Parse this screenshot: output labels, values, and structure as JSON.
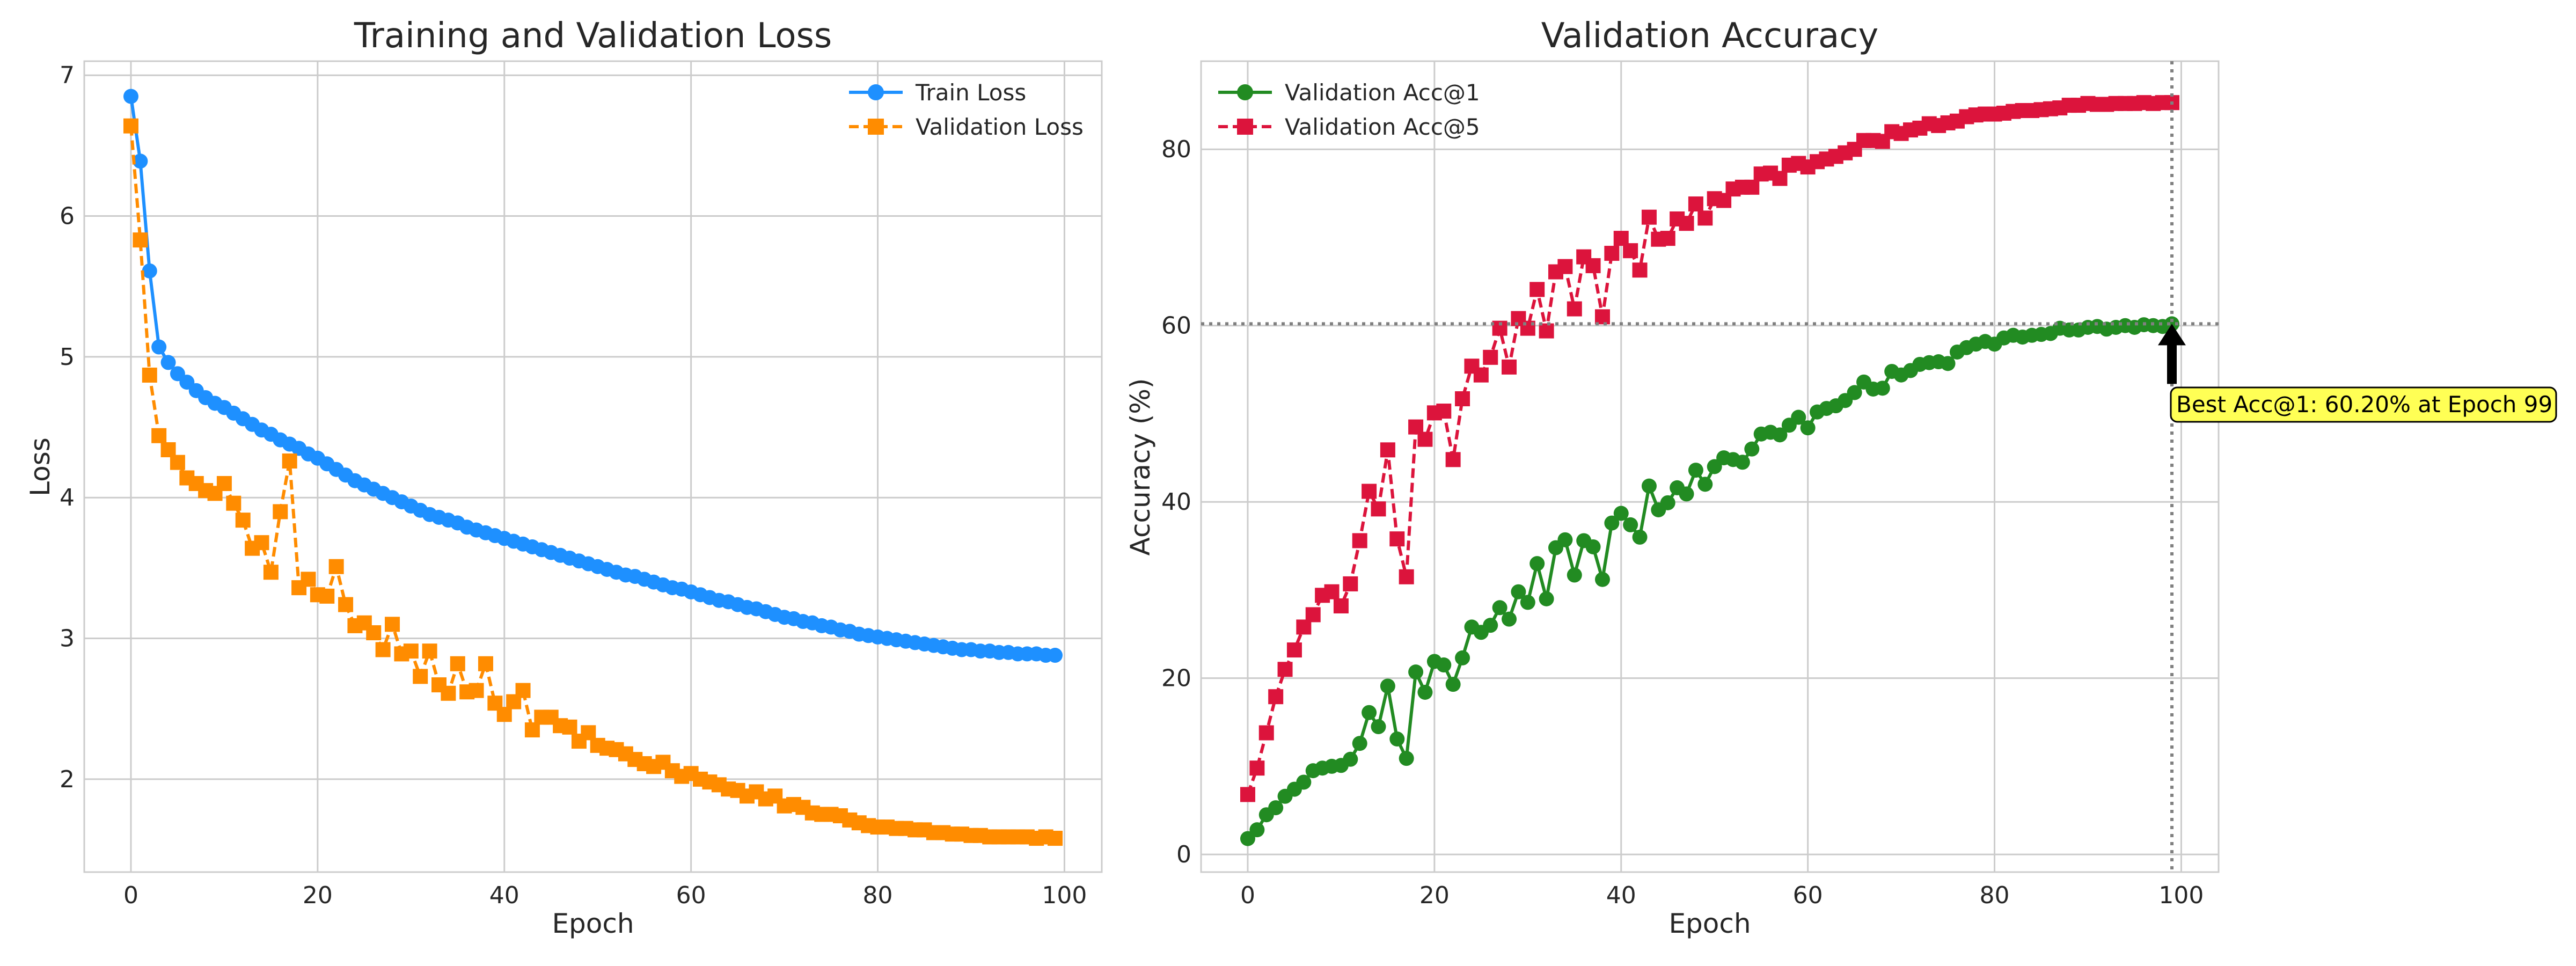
{
  "chart_data": [
    {
      "type": "line",
      "title": "Training and Validation Loss",
      "xlabel": "Epoch",
      "ylabel": "Loss",
      "xlim": [
        -5,
        104
      ],
      "ylim": [
        1.34,
        7.1
      ],
      "xticks": [
        0,
        20,
        40,
        60,
        80,
        100
      ],
      "yticks": [
        2,
        3,
        4,
        5,
        6,
        7
      ],
      "grid": true,
      "legend_position": "top-right",
      "series": [
        {
          "name": "Train Loss",
          "color": "#1E90FF",
          "linestyle": "solid",
          "marker": "circle",
          "values": [
            6.85,
            6.39,
            5.61,
            5.07,
            4.96,
            4.88,
            4.82,
            4.76,
            4.71,
            4.67,
            4.64,
            4.6,
            4.56,
            4.52,
            4.48,
            4.45,
            4.41,
            4.38,
            4.35,
            4.31,
            4.28,
            4.24,
            4.2,
            4.16,
            4.12,
            4.09,
            4.06,
            4.03,
            4.0,
            3.97,
            3.94,
            3.91,
            3.88,
            3.86,
            3.84,
            3.82,
            3.79,
            3.77,
            3.75,
            3.73,
            3.71,
            3.69,
            3.67,
            3.65,
            3.63,
            3.61,
            3.59,
            3.57,
            3.55,
            3.53,
            3.51,
            3.49,
            3.47,
            3.45,
            3.44,
            3.42,
            3.4,
            3.38,
            3.36,
            3.35,
            3.33,
            3.31,
            3.29,
            3.27,
            3.26,
            3.24,
            3.22,
            3.21,
            3.19,
            3.17,
            3.15,
            3.14,
            3.12,
            3.11,
            3.09,
            3.08,
            3.06,
            3.05,
            3.03,
            3.02,
            3.01,
            3.0,
            2.99,
            2.98,
            2.97,
            2.96,
            2.95,
            2.94,
            2.93,
            2.92,
            2.92,
            2.91,
            2.91,
            2.9,
            2.9,
            2.89,
            2.89,
            2.89,
            2.88,
            2.88
          ]
        },
        {
          "name": "Validation Loss",
          "color": "#FF8C00",
          "linestyle": "dashed",
          "marker": "square",
          "values": [
            6.64,
            5.83,
            4.87,
            4.44,
            4.34,
            4.25,
            4.14,
            4.1,
            4.05,
            4.03,
            4.1,
            3.96,
            3.84,
            3.64,
            3.68,
            3.47,
            3.9,
            4.26,
            3.36,
            3.42,
            3.31,
            3.3,
            3.51,
            3.24,
            3.09,
            3.11,
            3.04,
            2.92,
            3.1,
            2.89,
            2.91,
            2.73,
            2.91,
            2.67,
            2.61,
            2.82,
            2.62,
            2.63,
            2.82,
            2.54,
            2.46,
            2.55,
            2.63,
            2.35,
            2.44,
            2.44,
            2.38,
            2.37,
            2.27,
            2.33,
            2.24,
            2.22,
            2.21,
            2.18,
            2.14,
            2.11,
            2.09,
            2.12,
            2.06,
            2.02,
            2.04,
            2.0,
            1.98,
            1.96,
            1.93,
            1.92,
            1.88,
            1.91,
            1.86,
            1.88,
            1.81,
            1.82,
            1.8,
            1.76,
            1.75,
            1.75,
            1.74,
            1.71,
            1.69,
            1.67,
            1.66,
            1.66,
            1.65,
            1.65,
            1.64,
            1.64,
            1.62,
            1.62,
            1.61,
            1.61,
            1.6,
            1.6,
            1.59,
            1.59,
            1.59,
            1.59,
            1.59,
            1.58,
            1.59,
            1.58
          ]
        }
      ]
    },
    {
      "type": "line",
      "title": "Validation Accuracy",
      "xlabel": "Epoch",
      "ylabel": "Accuracy (%)",
      "xlim": [
        -5,
        104
      ],
      "ylim": [
        -2,
        90
      ],
      "xticks": [
        0,
        20,
        40,
        60,
        80,
        100
      ],
      "yticks": [
        0,
        20,
        40,
        60,
        80
      ],
      "grid": true,
      "legend_position": "top-left",
      "reference_lines": {
        "horizontal_y": 60.2,
        "vertical_x": 99,
        "style": "dotted",
        "color": "#808080"
      },
      "annotation": {
        "text": "Best Acc@1: 60.20% at Epoch 99",
        "point": [
          99,
          60.2
        ],
        "box_color": "#FFFF55"
      },
      "series": [
        {
          "name": "Validation Acc@1",
          "color": "#228B22",
          "linestyle": "solid",
          "marker": "circle",
          "values": [
            1.8,
            2.8,
            4.5,
            5.3,
            6.6,
            7.4,
            8.2,
            9.5,
            9.8,
            10.0,
            10.1,
            10.8,
            12.6,
            16.1,
            14.5,
            19.1,
            13.1,
            10.9,
            20.7,
            18.4,
            21.9,
            21.5,
            19.3,
            22.3,
            25.8,
            25.2,
            26.0,
            28.0,
            26.7,
            29.8,
            28.6,
            33.0,
            29.0,
            34.8,
            35.7,
            31.7,
            35.6,
            34.9,
            31.2,
            37.6,
            38.7,
            37.4,
            36.0,
            41.8,
            39.1,
            39.9,
            41.6,
            40.9,
            43.6,
            42.0,
            44.0,
            45.0,
            44.8,
            44.5,
            46.0,
            47.7,
            47.9,
            47.6,
            48.7,
            49.6,
            48.4,
            50.2,
            50.6,
            50.9,
            51.5,
            52.4,
            53.6,
            52.8,
            52.9,
            54.8,
            54.4,
            54.9,
            55.6,
            55.8,
            55.9,
            55.7,
            57.0,
            57.5,
            57.9,
            58.2,
            57.9,
            58.6,
            58.9,
            58.7,
            58.9,
            59.0,
            59.1,
            59.7,
            59.5,
            59.5,
            59.8,
            59.9,
            59.6,
            59.8,
            60.0,
            59.8,
            60.1,
            60.0,
            59.9,
            60.2
          ]
        },
        {
          "name": "Validation Acc@5",
          "color": "#DC143C",
          "linestyle": "dashed",
          "marker": "square",
          "values": [
            6.8,
            9.8,
            13.8,
            17.9,
            21.0,
            23.2,
            25.8,
            27.2,
            29.4,
            29.8,
            28.2,
            30.7,
            35.6,
            41.2,
            39.2,
            45.9,
            35.8,
            31.5,
            48.5,
            47.1,
            50.1,
            50.3,
            44.8,
            51.7,
            55.4,
            54.4,
            56.4,
            59.7,
            55.3,
            60.8,
            59.7,
            64.1,
            59.4,
            66.1,
            66.7,
            61.9,
            67.8,
            66.8,
            61.0,
            68.2,
            69.9,
            68.5,
            66.3,
            72.3,
            69.8,
            69.9,
            72.1,
            71.6,
            73.8,
            72.2,
            74.4,
            74.2,
            75.5,
            75.7,
            75.7,
            77.2,
            77.3,
            76.7,
            78.2,
            78.4,
            78.0,
            78.6,
            78.9,
            79.2,
            79.6,
            80.0,
            81.0,
            81.0,
            80.9,
            82.0,
            81.8,
            82.2,
            82.4,
            82.9,
            82.7,
            83.0,
            83.2,
            83.7,
            83.9,
            84.0,
            84.0,
            84.1,
            84.3,
            84.4,
            84.4,
            84.5,
            84.6,
            84.7,
            85.0,
            85.0,
            85.2,
            85.1,
            85.1,
            85.2,
            85.2,
            85.2,
            85.3,
            85.2,
            85.3,
            85.3
          ]
        }
      ]
    }
  ]
}
